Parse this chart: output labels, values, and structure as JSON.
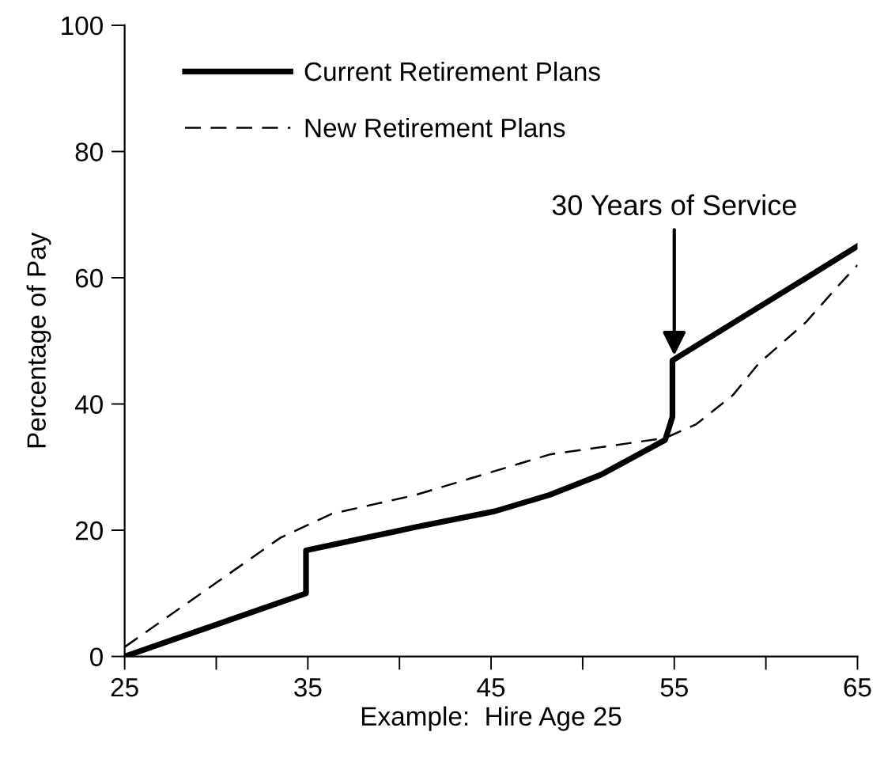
{
  "chart_data": {
    "type": "line",
    "xlabel": "Example:  Hire Age 25",
    "ylabel": "Percentage of Pay",
    "xlim": [
      25,
      65
    ],
    "ylim": [
      0,
      100
    ],
    "xticks": [
      25,
      {
        "value": 30,
        "label": null
      },
      35,
      {
        "value": 40,
        "label": null
      },
      45,
      {
        "value": 50,
        "label": null
      },
      55,
      {
        "value": 60,
        "label": null
      },
      65
    ],
    "yticks": [
      0,
      20,
      40,
      60,
      80,
      100
    ],
    "grid": false,
    "legend": "top left",
    "marker": "none",
    "series": [
      {
        "name": "Current Retirement Plans",
        "color": "#000000",
        "line_style": "solid",
        "x": [
          25,
          34.9,
          34.9,
          40.9,
          45.2,
          48.2,
          51,
          54.5,
          54.8,
          54.9,
          54.9,
          61.6,
          65
        ],
        "values": [
          0,
          10,
          16.8,
          20.5,
          23,
          25.6,
          28.8,
          34.3,
          37,
          38,
          46.9,
          58.9,
          65
        ]
      },
      {
        "name": "New Retirement Plans",
        "color": "#000000",
        "line_style": "dashed",
        "x": [
          25,
          33.5,
          36.3,
          40.9,
          48.2,
          54.5,
          56.2,
          58.2,
          59.6,
          62.2,
          64,
          65
        ],
        "values": [
          1.5,
          18.8,
          22.6,
          25.6,
          32,
          34.6,
          36.8,
          41.4,
          46.4,
          53,
          58.9,
          62
        ]
      }
    ],
    "annotations": [
      {
        "text": "30 Years of Service",
        "x": 55,
        "y": 47
      }
    ]
  }
}
